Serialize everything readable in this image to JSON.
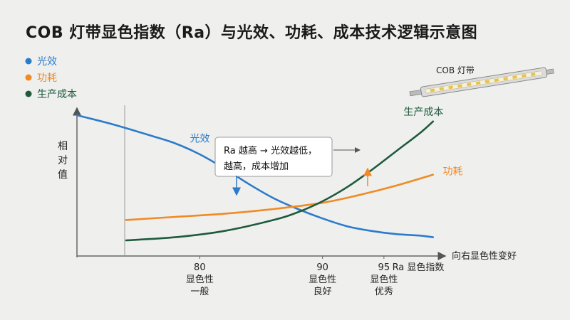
{
  "title": "COB 灯带显色指数（Ra）与光效、功耗、成本技术逻辑示意图",
  "legend": [
    {
      "name": "光效",
      "color": "#2b7bcb"
    },
    {
      "name": "功耗",
      "color": "#f08a24"
    },
    {
      "name": "生产成本",
      "color": "#1e5a3c"
    }
  ],
  "strip_label": "COB 灯带",
  "callout": {
    "line1": "Ra 越高 → 光效越低，",
    "line2": "越高，成本增加"
  },
  "trend_label": "向右显色性变好",
  "chart_data": {
    "type": "line",
    "title": "COB 灯带显色指数（Ra）与光效、功耗、成本技术逻辑示意图",
    "xlabel": "Ra 显色指数",
    "ylabel": "相对值",
    "xlim": [
      70,
      100
    ],
    "ylim": [
      0,
      1
    ],
    "grid": false,
    "legend_position": "top-left",
    "ticks": [
      {
        "value": 80,
        "label": "80",
        "desc1": "显色性",
        "desc2": "一般"
      },
      {
        "value": 90,
        "label": "90",
        "desc1": "显色性",
        "desc2": "良好"
      },
      {
        "value": 95,
        "label": "95",
        "desc1": "显色性",
        "desc2": "优秀"
      }
    ],
    "series": [
      {
        "name": "光效",
        "color": "#2b7bcb",
        "x": [
          70,
          73,
          76,
          78,
          80,
          82,
          84,
          86,
          88,
          90,
          92,
          94,
          96,
          98,
          99
        ],
        "y": [
          0.9,
          0.84,
          0.77,
          0.72,
          0.65,
          0.56,
          0.46,
          0.37,
          0.3,
          0.24,
          0.19,
          0.16,
          0.14,
          0.13,
          0.12
        ]
      },
      {
        "name": "功耗",
        "color": "#f08a24",
        "x": [
          74,
          78,
          82,
          86,
          90,
          93,
          96,
          99
        ],
        "y": [
          0.23,
          0.25,
          0.27,
          0.3,
          0.34,
          0.39,
          0.45,
          0.52
        ]
      },
      {
        "name": "生产成本",
        "color": "#1e5a3c",
        "x": [
          74,
          78,
          82,
          86,
          88,
          90,
          92,
          94,
          96,
          98,
          99
        ],
        "y": [
          0.1,
          0.12,
          0.16,
          0.23,
          0.28,
          0.35,
          0.44,
          0.55,
          0.67,
          0.79,
          0.86
        ]
      }
    ],
    "series_labels": [
      {
        "name": "光效",
        "x": 79.2,
        "y": 0.73
      },
      {
        "name": "功耗",
        "x": 99.8,
        "y": 0.52
      },
      {
        "name": "生产成本",
        "x": 96.6,
        "y": 0.9
      }
    ]
  }
}
